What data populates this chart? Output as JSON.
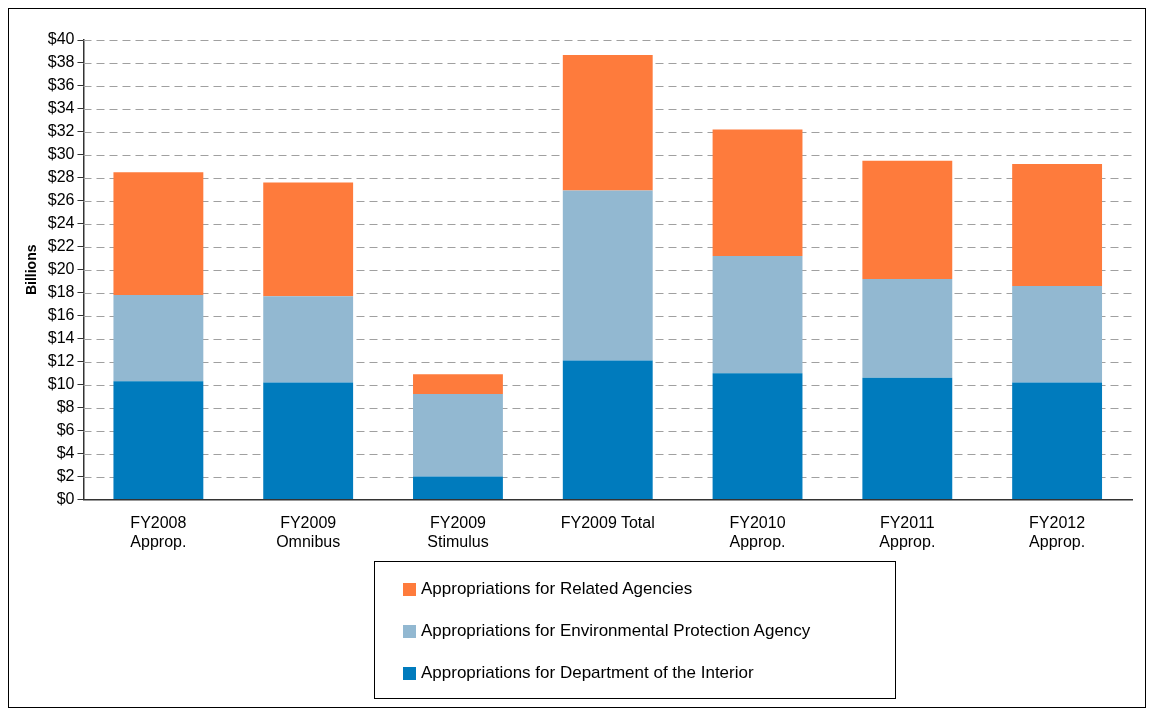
{
  "chart_data": {
    "type": "bar",
    "stacked": true,
    "ylabel": "Billions",
    "categories": [
      "FY2008 Approp.",
      "FY2009 Omnibus",
      "FY2009 Stimulus",
      "FY2009 Total",
      "FY2010 Approp.",
      "FY2011 Approp.",
      "FY2012 Approp."
    ],
    "series": [
      {
        "name": "Appropriations for Department of the Interior",
        "color": "#007bbd",
        "values": [
          10.3,
          10.2,
          2.0,
          12.1,
          11.0,
          10.6,
          10.2
        ]
      },
      {
        "name": "Appropriations for Environmental Protection Agency",
        "color": "#92b8d1",
        "values": [
          7.5,
          7.5,
          7.2,
          14.8,
          10.2,
          8.6,
          8.4
        ]
      },
      {
        "name": "Appropriations for Related Agencies",
        "color": "#fe7b3c",
        "values": [
          10.7,
          9.9,
          1.7,
          11.8,
          11.0,
          10.3,
          10.6
        ]
      }
    ],
    "ylim": [
      0,
      40
    ],
    "yticks": [
      {
        "value": 0,
        "label": "$0"
      },
      {
        "value": 2,
        "label": "$2"
      },
      {
        "value": 4,
        "label": "$4"
      },
      {
        "value": 6,
        "label": "$6"
      },
      {
        "value": 8,
        "label": "$8"
      },
      {
        "value": 10,
        "label": "$10"
      },
      {
        "value": 12,
        "label": "$12"
      },
      {
        "value": 14,
        "label": "$14"
      },
      {
        "value": 16,
        "label": "$16"
      },
      {
        "value": 18,
        "label": "$18"
      },
      {
        "value": 20,
        "label": "$20"
      },
      {
        "value": 22,
        "label": "$22"
      },
      {
        "value": 24,
        "label": "$24"
      },
      {
        "value": 26,
        "label": "$26"
      },
      {
        "value": 28,
        "label": "$28"
      },
      {
        "value": 30,
        "label": "$30"
      },
      {
        "value": 32,
        "label": "$32"
      },
      {
        "value": 34,
        "label": "$34"
      },
      {
        "value": 36,
        "label": "$36"
      },
      {
        "value": 38,
        "label": "$38"
      },
      {
        "value": 40,
        "label": "$40"
      }
    ],
    "grid": "y",
    "legend": "bottom"
  }
}
